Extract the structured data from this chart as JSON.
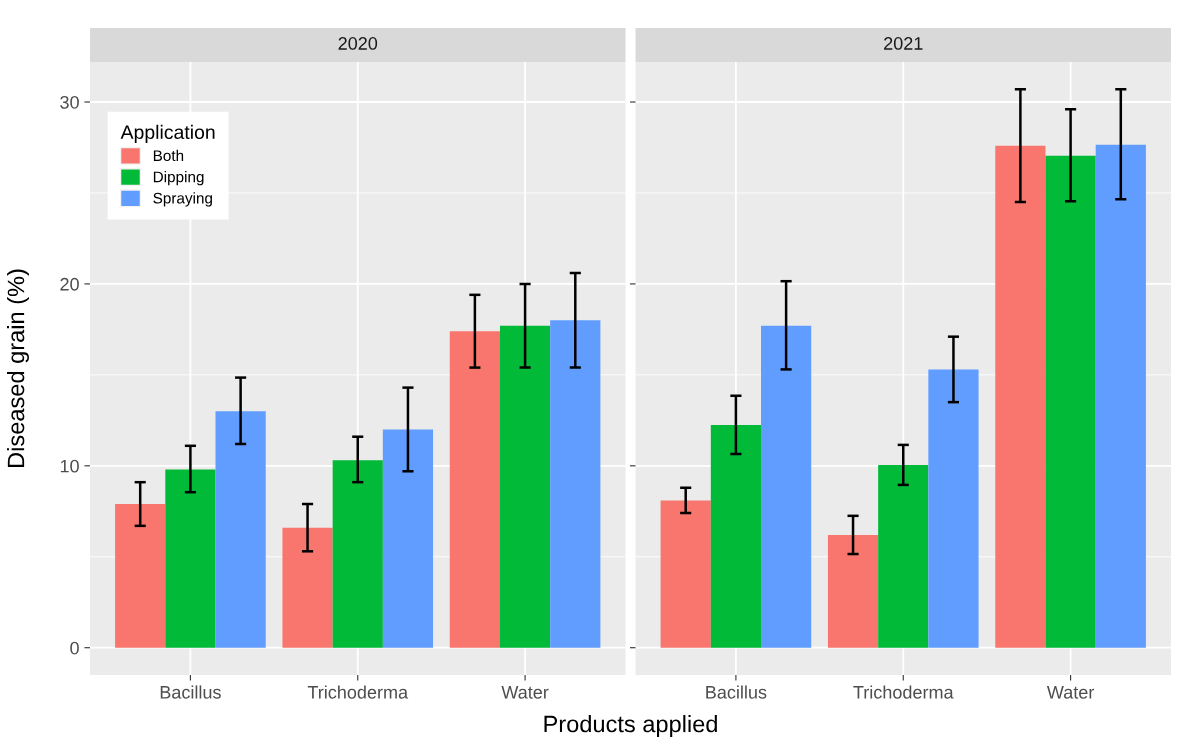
{
  "chart_data": [
    {
      "type": "bar",
      "title": "2020",
      "xlabel": "Products applied",
      "ylabel": "Diseased grain (%)",
      "legend_title": "Application",
      "legend": "top left",
      "grid": true,
      "categories": [
        "Bacillus",
        "Trichoderma",
        "Water"
      ],
      "ylim": [
        -1.5,
        32.2
      ],
      "yticks": [
        0,
        10,
        20,
        30
      ],
      "series": [
        {
          "name": "Both",
          "color": "#f8766d",
          "values": [
            7.9,
            6.6,
            17.4
          ],
          "errors": [
            [
              6.7,
              9.1
            ],
            [
              5.3,
              7.9
            ],
            [
              15.4,
              19.4
            ]
          ]
        },
        {
          "name": "Dipping",
          "color": "#00ba38",
          "values": [
            9.8,
            10.3,
            17.7
          ],
          "errors": [
            [
              8.55,
              11.1
            ],
            [
              9.1,
              11.6
            ],
            [
              15.4,
              20.0
            ]
          ]
        },
        {
          "name": "Spraying",
          "color": "#619cff",
          "values": [
            13.0,
            12.0,
            18.0
          ],
          "errors": [
            [
              11.2,
              14.85
            ],
            [
              9.7,
              14.3
            ],
            [
              15.4,
              20.6
            ]
          ]
        }
      ]
    },
    {
      "type": "bar",
      "title": "2021",
      "grid": true,
      "tick_labels": "x",
      "categories": [
        "Bacillus",
        "Trichoderma",
        "Water"
      ],
      "ylim": [
        -1.5,
        32.2
      ],
      "yticks": [
        0,
        10,
        20,
        30
      ],
      "series": [
        {
          "color": "#f8766d",
          "values": [
            8.1,
            6.2,
            27.6
          ],
          "errors": [
            [
              7.4,
              8.8
            ],
            [
              5.15,
              7.25
            ],
            [
              24.5,
              30.7
            ]
          ]
        },
        {
          "color": "#00ba38",
          "values": [
            12.25,
            10.05,
            27.05
          ],
          "errors": [
            [
              10.65,
              13.85
            ],
            [
              8.95,
              11.15
            ],
            [
              24.55,
              29.6
            ]
          ]
        },
        {
          "color": "#619cff",
          "values": [
            17.7,
            15.3,
            27.65
          ],
          "errors": [
            [
              15.3,
              20.15
            ],
            [
              13.5,
              17.1
            ],
            [
              24.65,
              30.7
            ]
          ]
        }
      ]
    }
  ]
}
